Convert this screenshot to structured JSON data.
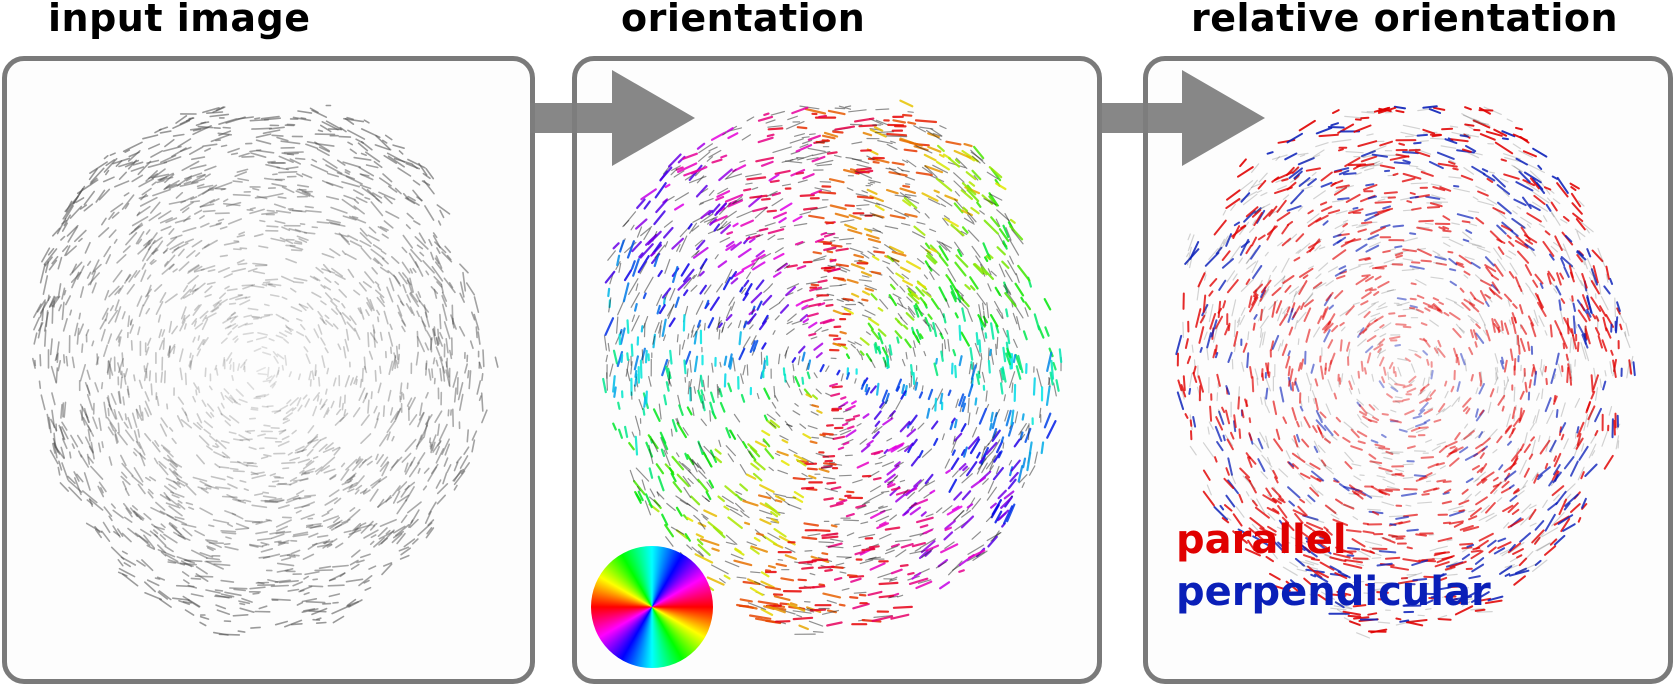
{
  "panels": [
    {
      "title": "input image",
      "mode": "gray"
    },
    {
      "title": "orientation",
      "mode": "color"
    },
    {
      "title": "relative orientation",
      "mode": "relative"
    }
  ],
  "legend": {
    "parallel_label": "parallel",
    "perpendicular_label": "perpendicular",
    "parallel_color": "#e00000",
    "perpendicular_color": "#0a1fb8"
  },
  "colors": {
    "frame": "#7a7a7a",
    "arrow": "#7d7d7d"
  },
  "icons": {
    "orientation_legend": "color-wheel-icon",
    "flow": "arrow-right-icon"
  }
}
